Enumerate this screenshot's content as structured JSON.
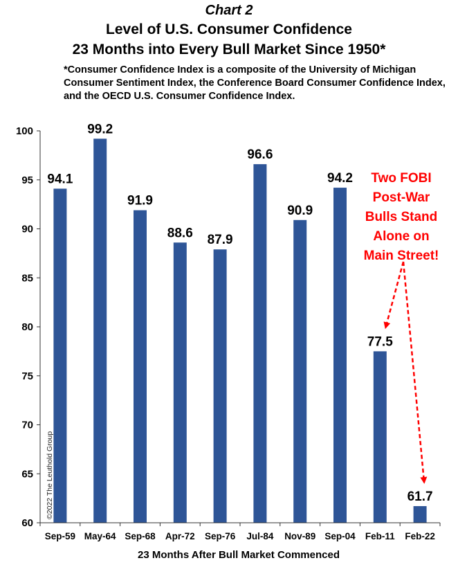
{
  "header": {
    "chart_label": "Chart 2",
    "title_lines": [
      "Level of U.S. Consumer Confidence",
      "23 Months into Every Bull Market Since 1950*"
    ],
    "note_lines": [
      "*Consumer Confidence Index is a composite of the University of Michigan",
      "Consumer Sentiment Index, the Conference Board Consumer Confidence Index,",
      "and the OECD U.S. Consumer Confidence Index."
    ]
  },
  "copyright": "©2022 The Leuthold Group",
  "annotation": {
    "lines": [
      "Two FOBI",
      "Post-War",
      "Bulls Stand",
      "Alone on",
      "Main Street!"
    ],
    "color": "#ff0000"
  },
  "chart_data": {
    "type": "bar",
    "categories": [
      "Sep-59",
      "May-64",
      "Sep-68",
      "Apr-72",
      "Sep-76",
      "Jul-84",
      "Nov-89",
      "Sep-04",
      "Feb-11",
      "Feb-22"
    ],
    "values": [
      94.1,
      99.2,
      91.9,
      88.6,
      87.9,
      96.6,
      90.9,
      94.2,
      77.5,
      61.7
    ],
    "data_labels": [
      "94.1",
      "99.2",
      "91.9",
      "88.6",
      "87.9",
      "96.6",
      "90.9",
      "94.2",
      "77.5",
      "61.7"
    ],
    "xlabel": "23 Months After Bull Market Commenced",
    "ylabel": "",
    "ylim": [
      60,
      100
    ],
    "yticks": [
      60,
      65,
      70,
      75,
      80,
      85,
      90,
      95,
      100
    ],
    "grid": false,
    "bar_color": "#2e5597",
    "arrow_targets": [
      "Feb-11",
      "Feb-22"
    ]
  }
}
